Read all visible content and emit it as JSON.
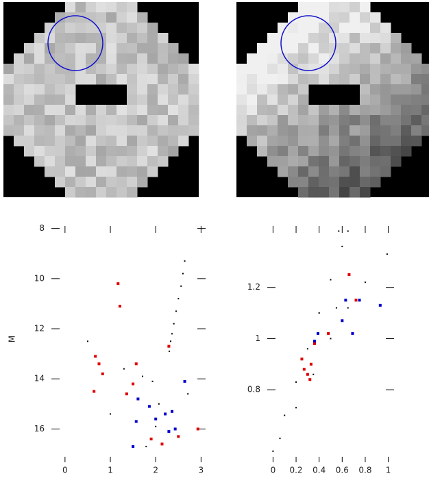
{
  "chart_data": [
    {
      "type": "scatter",
      "y_label": "M",
      "xlim": [
        -0.3,
        3.1
      ],
      "ylim": [
        17.6,
        7.9
      ],
      "xticks": [
        0,
        1,
        2,
        3
      ],
      "yticks": [
        8,
        10,
        12,
        14,
        16
      ],
      "series": [
        {
          "color": "#000000",
          "x": [
            2.64,
            2.6,
            2.56,
            2.5,
            2.45,
            2.4,
            2.36,
            2.33,
            2.3,
            1.0,
            1.71,
            1.93,
            2.71,
            2.07,
            1.79,
            1.3,
            0.5,
            2.0
          ],
          "y": [
            9.3,
            9.8,
            10.3,
            10.8,
            11.3,
            11.8,
            12.2,
            12.5,
            12.9,
            15.4,
            13.9,
            14.1,
            14.6,
            15.0,
            16.7,
            13.6,
            12.5,
            15.9
          ]
        },
        {
          "color": "#dd0000",
          "x": [
            1.17,
            1.21,
            0.67,
            0.83,
            0.64,
            1.57,
            1.5,
            1.36,
            2.29,
            2.14,
            2.93,
            2.5,
            0.75,
            1.9
          ],
          "y": [
            10.2,
            11.1,
            13.1,
            13.8,
            14.5,
            13.4,
            14.2,
            14.6,
            12.7,
            16.6,
            16.0,
            16.3,
            13.4,
            16.4
          ]
        },
        {
          "color": "#0000cc",
          "x": [
            2.64,
            1.61,
            1.86,
            2.21,
            2.36,
            1.57,
            2.29,
            1.5,
            2.43,
            2.0
          ],
          "y": [
            14.1,
            14.8,
            15.1,
            15.4,
            15.3,
            15.7,
            16.1,
            16.7,
            16.0,
            15.6
          ]
        }
      ]
    },
    {
      "type": "scatter",
      "xlim": [
        -0.05,
        1.05
      ],
      "ylim": [
        0.49,
        1.44
      ],
      "xticks": [
        0,
        0.2,
        0.4,
        0.6,
        0.8,
        1
      ],
      "yticks": [
        0.8,
        1,
        1.2
      ],
      "series": [
        {
          "color": "#000000",
          "x": [
            0,
            0.1,
            0.2,
            0.3,
            0.4,
            0.5,
            0.6,
            0.65,
            0.06,
            0.2,
            0.35,
            0.5,
            0.65,
            0.8,
            0.99,
            0.55,
            0.57
          ],
          "y": [
            0.56,
            0.7,
            0.83,
            0.96,
            1.1,
            1.23,
            1.36,
            1.42,
            0.61,
            0.73,
            0.86,
            1.0,
            1.12,
            1.22,
            1.33,
            1.12,
            1.42
          ]
        },
        {
          "color": "#dd0000",
          "x": [
            0.27,
            0.3,
            0.33,
            0.36,
            0.48,
            0.66,
            0.72,
            0.25,
            0.32
          ],
          "y": [
            0.88,
            0.86,
            0.9,
            0.98,
            1.02,
            1.25,
            1.15,
            0.92,
            0.84
          ]
        },
        {
          "color": "#0000cc",
          "x": [
            0.39,
            0.6,
            0.63,
            0.69,
            0.93,
            0.36,
            0.75
          ],
          "y": [
            1.02,
            1.07,
            1.15,
            1.02,
            1.13,
            0.99,
            1.15
          ]
        }
      ]
    }
  ]
}
